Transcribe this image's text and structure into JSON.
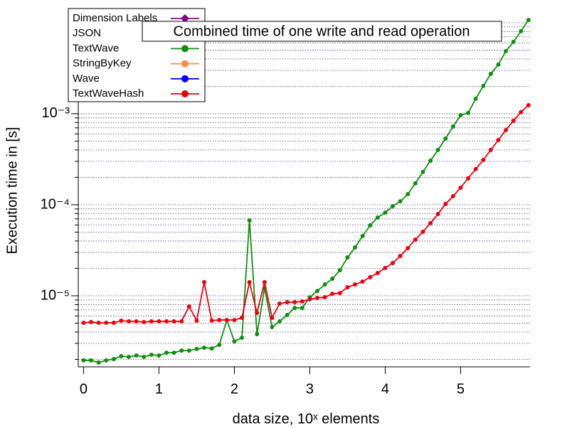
{
  "chart_data": {
    "type": "line",
    "title": "Combined time of one write and read operation",
    "x_label": "data size, 10ˣ elements",
    "y_label": "Execution time in [s]",
    "log_y": true,
    "xlim": [
      -0.07,
      5.92
    ],
    "xticks": [
      0,
      1,
      2,
      3,
      4,
      5
    ],
    "ylim": [
      1.78e-06,
      0.0143
    ],
    "yticks": [
      {
        "value": 1e-05,
        "label": "10⁻⁵"
      },
      {
        "value": 0.0001,
        "label": "10⁻⁴"
      },
      {
        "value": 0.001,
        "label": "10⁻³"
      }
    ],
    "ygrid": [
      2e-06,
      3e-06,
      4e-06,
      5e-06,
      6e-06,
      7e-06,
      8e-06,
      9e-06,
      1e-05,
      2e-05,
      3e-05,
      4e-05,
      5e-05,
      6e-05,
      7e-05,
      8e-05,
      9e-05,
      0.0001,
      0.0002,
      0.0003,
      0.0004,
      0.0005,
      0.0006,
      0.0007,
      0.0008,
      0.0009,
      0.001,
      0.002,
      0.003,
      0.004,
      0.005,
      0.006,
      0.007,
      0.008,
      0.009,
      0.01
    ],
    "grid": true,
    "legend": "top-left",
    "x": [
      0,
      0.1,
      0.2,
      0.3,
      0.4,
      0.5,
      0.6,
      0.7,
      0.8,
      0.9,
      1.0,
      1.1,
      1.2,
      1.3,
      1.4,
      1.5,
      1.6,
      1.7,
      1.8,
      1.9,
      2.0,
      2.1,
      2.2,
      2.3,
      2.4,
      2.5,
      2.6,
      2.7,
      2.8,
      2.9,
      3.0,
      3.1,
      3.2,
      3.3,
      3.4,
      3.5,
      3.6,
      3.7,
      3.8,
      3.9,
      4.0,
      4.1,
      4.2,
      4.3,
      4.4,
      4.5,
      4.6,
      4.7,
      4.8,
      4.9,
      5.0,
      5.1,
      5.2,
      5.3,
      5.4,
      5.5,
      5.6,
      5.7,
      5.8,
      5.9
    ],
    "series": [
      {
        "name": "Dimension Labels",
        "color": "#8b008b",
        "marker": "diamond"
      },
      {
        "name": "JSON"
      },
      {
        "name": "TextWave",
        "color": "#109010",
        "marker": "circle",
        "values": [
          1.95e-06,
          1.95e-06,
          1.85e-06,
          1.95e-06,
          2.02e-06,
          2.17e-06,
          2.13e-06,
          2.21e-06,
          2.13e-06,
          2.25e-06,
          2.21e-06,
          2.37e-06,
          2.37e-06,
          2.5e-06,
          2.5e-06,
          2.6e-06,
          2.69e-06,
          2.64e-06,
          2.89e-06,
          5.42e-06,
          3.16e-06,
          3.46e-06,
          6.73e-05,
          3.79e-06,
          1.22e-05,
          4.53e-06,
          5.24e-06,
          6.15e-06,
          7.36e-06,
          7.36e-06,
          9.6e-06,
          1.13e-05,
          1.33e-05,
          1.54e-05,
          1.91e-05,
          2.64e-05,
          3.4e-05,
          4.53e-05,
          5.93e-05,
          7.24e-05,
          8.2e-05,
          9.64e-05,
          0.000109,
          0.000131,
          0.000172,
          0.000229,
          0.000305,
          0.0004,
          0.000533,
          0.000723,
          0.000964,
          0.00102,
          0.00146,
          0.00202,
          0.00274,
          0.00346,
          0.00487,
          0.00615,
          0.00806,
          0.0107
        ]
      },
      {
        "name": "StringByKey",
        "color": "#ff8c4a",
        "marker": "circle"
      },
      {
        "name": "Wave",
        "color": "#0000ee",
        "marker": "circle"
      },
      {
        "name": "TextWaveHash",
        "color": "#ee0010",
        "marker": "circle",
        "values": [
          5.05e-06,
          5.14e-06,
          5.05e-06,
          5.05e-06,
          5.05e-06,
          5.33e-06,
          5.24e-06,
          5.24e-06,
          5.14e-06,
          5.24e-06,
          5.24e-06,
          5.24e-06,
          5.24e-06,
          5.24e-06,
          7.63e-06,
          5.33e-06,
          1.41e-05,
          5.33e-06,
          5.42e-06,
          5.42e-06,
          5.42e-06,
          5.73e-06,
          1.41e-05,
          6.49e-06,
          1.41e-05,
          5.73e-06,
          8.2e-06,
          8.5e-06,
          8.5e-06,
          8.66e-06,
          9.14e-06,
          9.48e-06,
          9.64e-06,
          1.05e-05,
          1.07e-05,
          1.24e-05,
          1.33e-05,
          1.43e-05,
          1.6e-05,
          1.78e-05,
          2.02e-05,
          2.29e-05,
          2.74e-05,
          3.34e-05,
          4.14e-05,
          5.05e-05,
          6.27e-05,
          7.91e-05,
          0.000102,
          0.000124,
          0.000154,
          0.000195,
          0.000246,
          0.00031,
          0.0004,
          0.000514,
          0.000661,
          0.000836,
          0.00104,
          0.00124
        ]
      }
    ]
  }
}
